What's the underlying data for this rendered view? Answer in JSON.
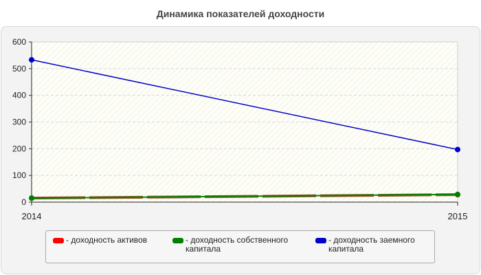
{
  "chart_data": {
    "type": "line",
    "title": "Динамика показателей доходности",
    "xlabel": "",
    "ylabel": "",
    "categories": [
      "2014",
      "2015"
    ],
    "ylim": [
      0,
      600
    ],
    "yticks": [
      "0",
      "100",
      "200",
      "300",
      "400",
      "500",
      "600"
    ],
    "grid": true,
    "legend_position": "bottom",
    "series": [
      {
        "name": "- доходность активов",
        "values": [
          15,
          28
        ],
        "color": "#ff0000"
      },
      {
        "name": "- доходность собственного капитала",
        "values": [
          15,
          29
        ],
        "color": "#008000"
      },
      {
        "name": "- доходность заемного капитала",
        "values": [
          533,
          197
        ],
        "color": "#0000cc"
      }
    ]
  }
}
